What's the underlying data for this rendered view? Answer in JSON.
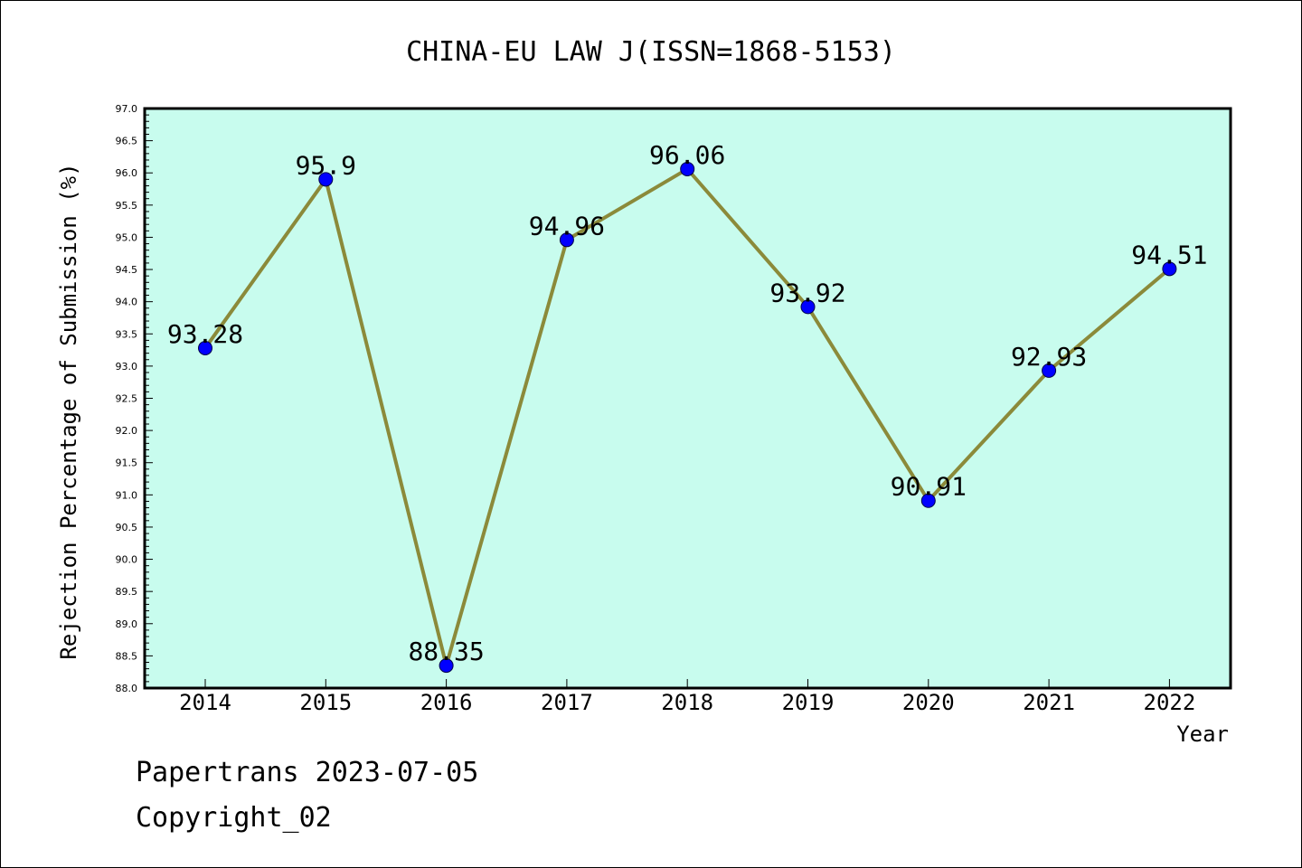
{
  "chart_data": {
    "type": "line",
    "title": "CHINA-EU LAW J(ISSN=1868-5153)",
    "xlabel": "Year",
    "ylabel": "Rejection Percentage of Submission (%)",
    "categories": [
      "2014",
      "2015",
      "2016",
      "2017",
      "2018",
      "2019",
      "2020",
      "2021",
      "2022"
    ],
    "values": [
      93.28,
      95.9,
      88.35,
      94.96,
      96.06,
      93.92,
      90.91,
      92.93,
      94.51
    ],
    "data_labels": [
      "93.28",
      "95.9",
      "88.35",
      "94.96",
      "96.06",
      "93.92",
      "90.91",
      "92.93",
      "94.51"
    ],
    "ylim": [
      88.0,
      97.0
    ],
    "yticks": [
      "88.0",
      "88.5",
      "89.0",
      "89.5",
      "90.0",
      "90.5",
      "91.0",
      "91.5",
      "92.0",
      "92.5",
      "93.0",
      "93.5",
      "94.0",
      "94.5",
      "95.0",
      "95.5",
      "96.0",
      "96.5",
      "97.0"
    ],
    "grid": false,
    "colors": {
      "plot_background": "#c8fcee",
      "line": "#8b8a3a",
      "marker": "#0000ff"
    }
  },
  "footer": {
    "line1": "Papertrans 2023-07-05",
    "line2": "Copyright_02"
  }
}
